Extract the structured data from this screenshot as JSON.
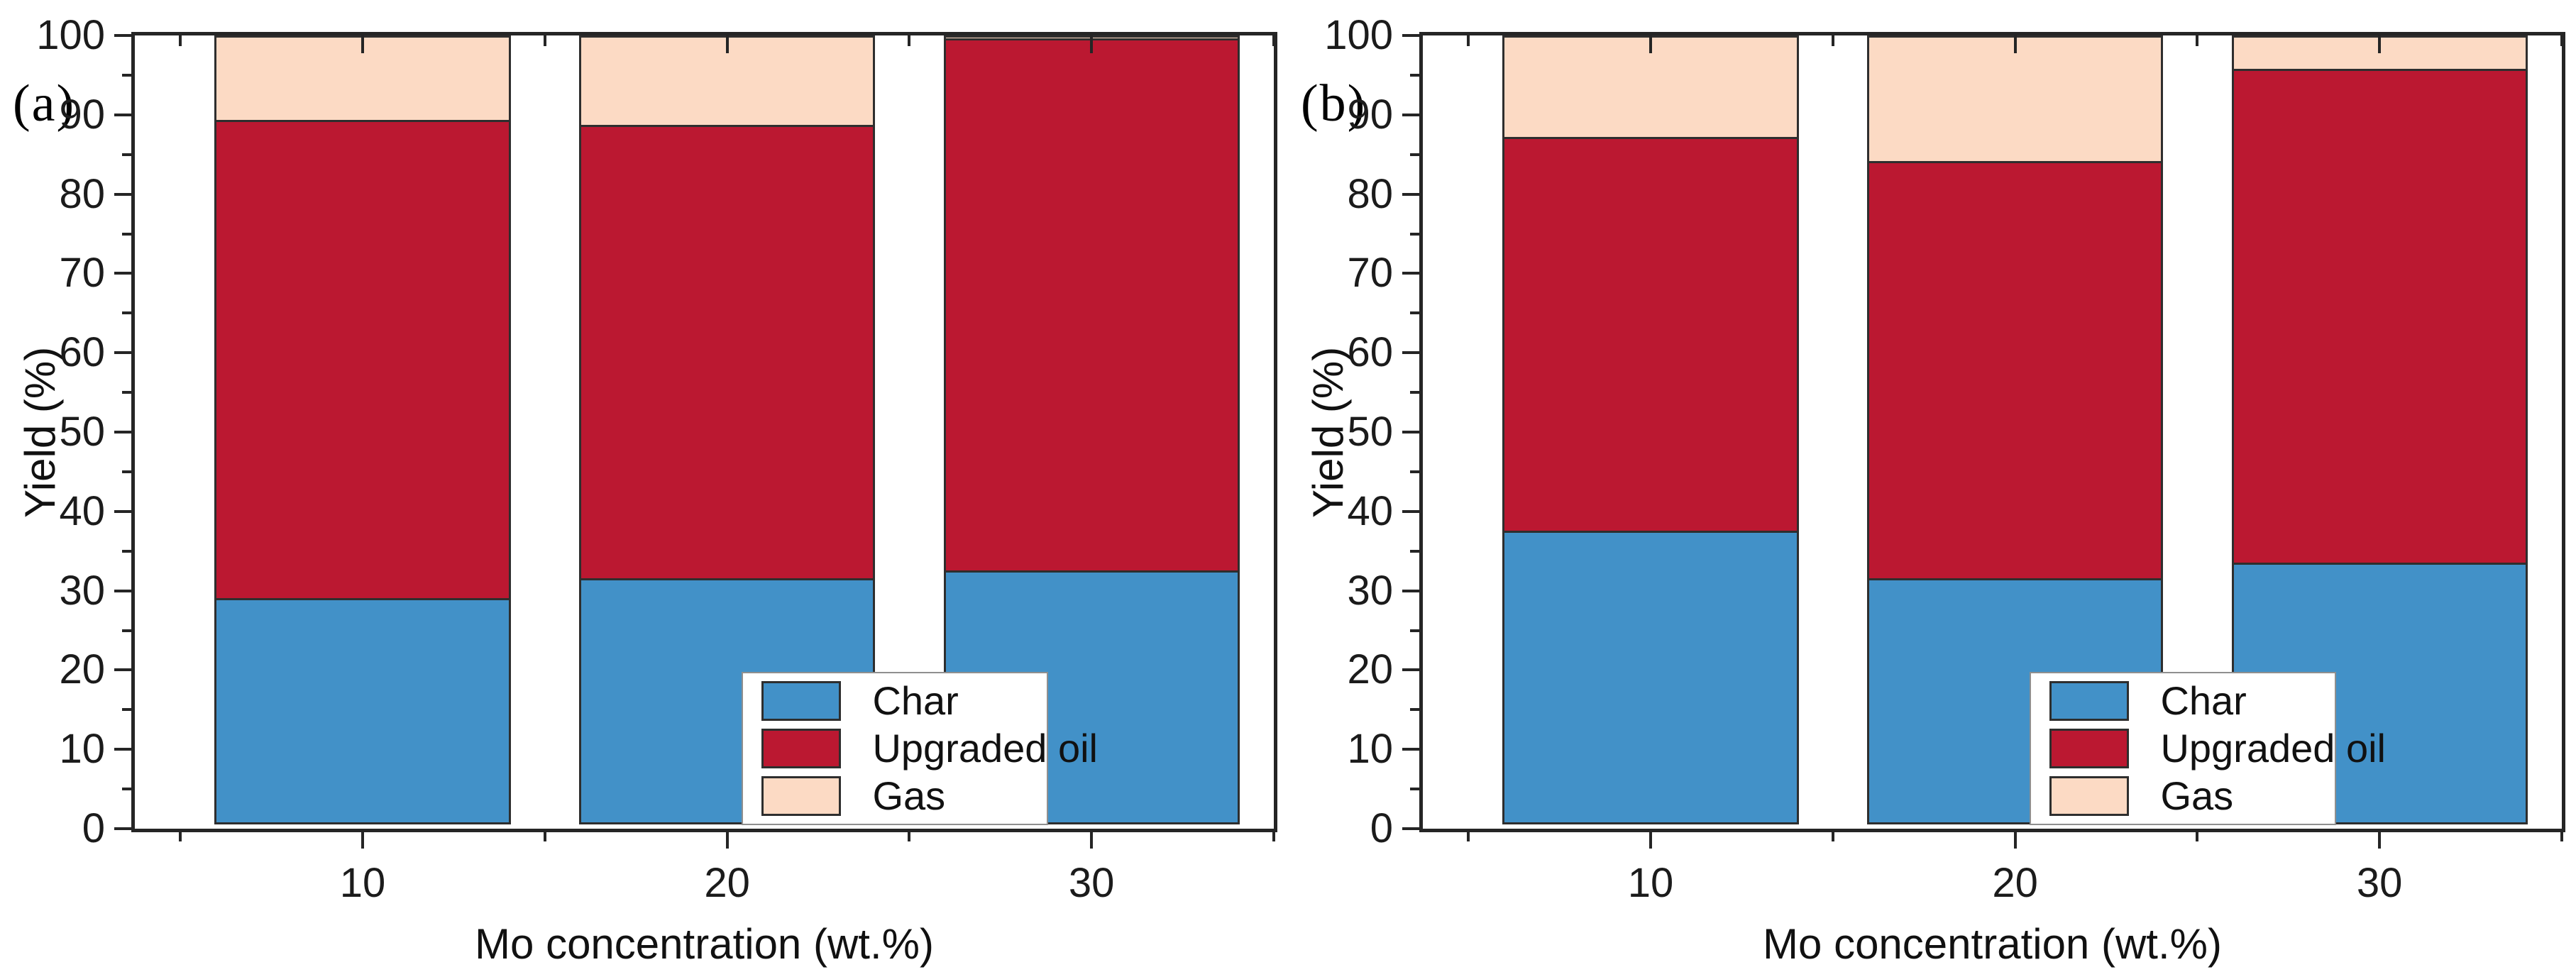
{
  "chart_data": [
    {
      "type": "bar",
      "stacked": true,
      "panel_label": "(a)",
      "xlabel": "Mo concentration (wt.%)",
      "ylabel": "Yield (%)",
      "categories": [
        "10",
        "20",
        "30"
      ],
      "series": [
        {
          "name": "Char",
          "color": "#4291c8",
          "values": [
            28.5,
            31.0,
            32.0
          ]
        },
        {
          "name": "Upgraded oil",
          "color": "#bb1831",
          "values": [
            60.6,
            57.5,
            67.4
          ]
        },
        {
          "name": "Gas",
          "color": "#fcdac4",
          "values": [
            10.9,
            11.5,
            0.6
          ]
        }
      ],
      "ylim": [
        0,
        100
      ],
      "y_major_step": 10,
      "y_minor_step": 5,
      "grid": false,
      "legend_position": "inside-bottom-right",
      "layout": {
        "bar_centers_pct": [
          20,
          52,
          84
        ],
        "bar_width_pct": 26,
        "minor_x_pct": [
          4,
          36,
          68,
          100
        ]
      }
    },
    {
      "type": "bar",
      "stacked": true,
      "panel_label": "(b)",
      "xlabel": "Mo concentration (wt.%)",
      "ylabel": "Yield (%)",
      "categories": [
        "10",
        "20",
        "30"
      ],
      "series": [
        {
          "name": "Char",
          "color": "#4291c8",
          "values": [
            37.0,
            31.0,
            33.0
          ]
        },
        {
          "name": "Upgraded oil",
          "color": "#bb1831",
          "values": [
            49.9,
            52.9,
            62.5
          ]
        },
        {
          "name": "Gas",
          "color": "#fcdac4",
          "values": [
            13.1,
            16.1,
            4.5
          ]
        }
      ],
      "ylim": [
        0,
        100
      ],
      "y_major_step": 10,
      "y_minor_step": 5,
      "grid": false,
      "legend_position": "inside-bottom-right",
      "layout": {
        "bar_centers_pct": [
          20,
          52,
          84
        ],
        "bar_width_pct": 26,
        "minor_x_pct": [
          4,
          36,
          68,
          100
        ]
      }
    }
  ],
  "frame_color": "#252525",
  "legend_border_color": "#8f8f8f"
}
